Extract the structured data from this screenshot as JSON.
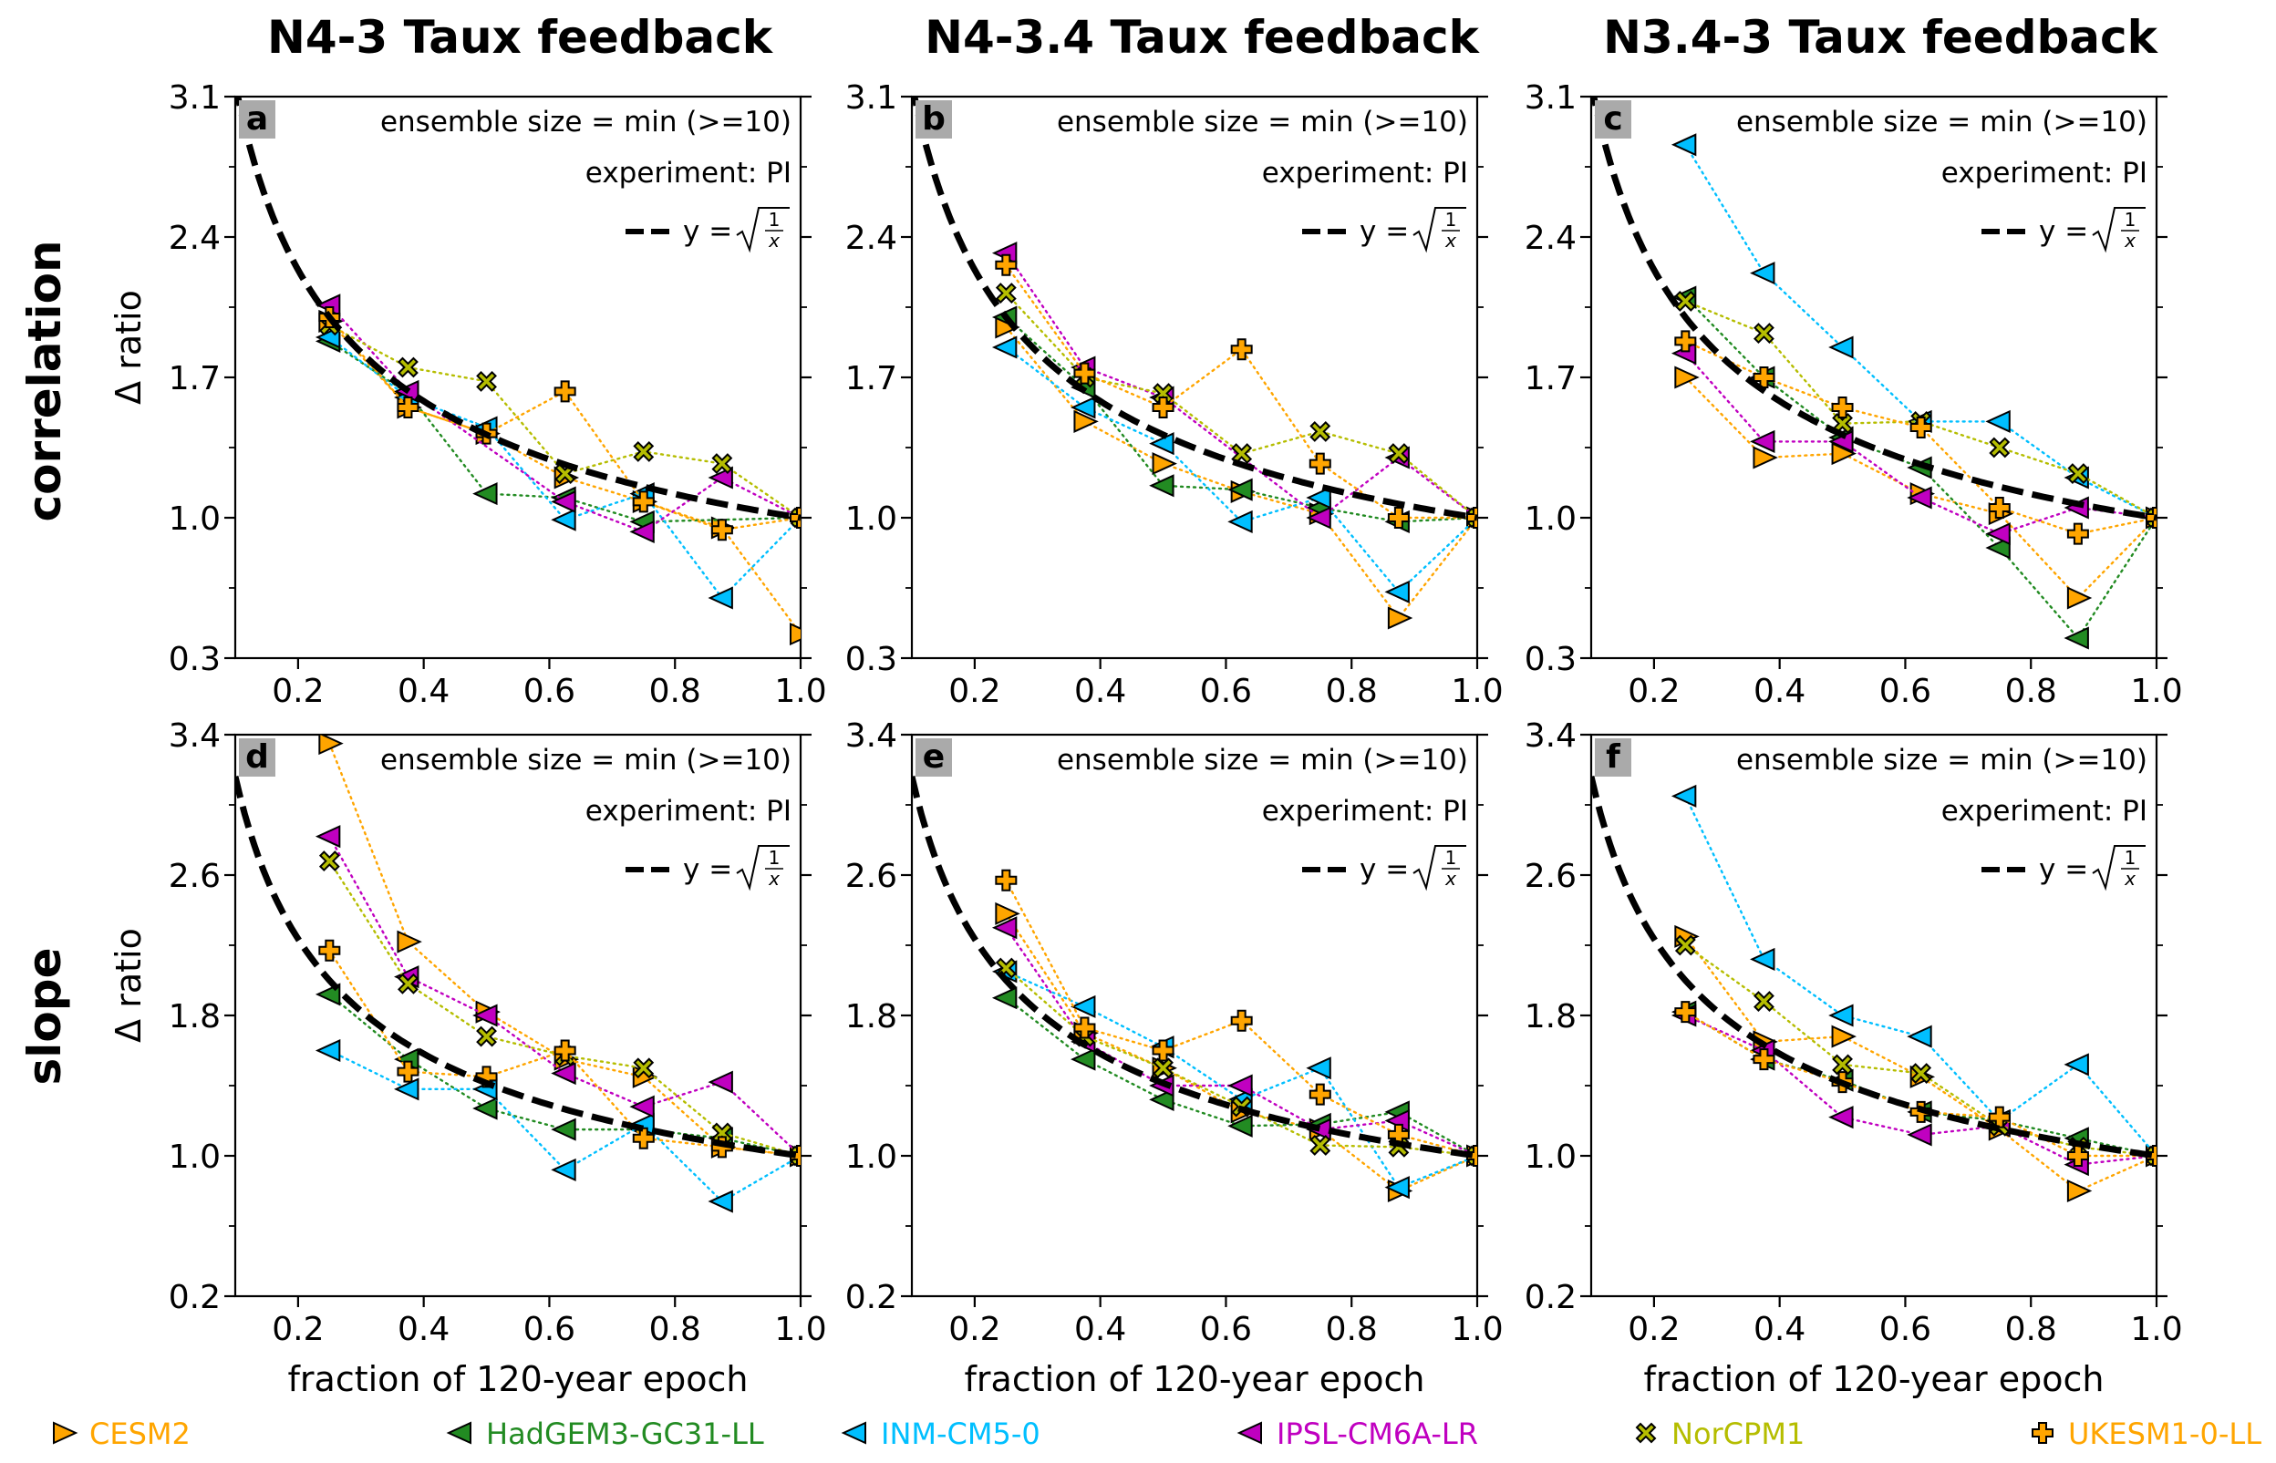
{
  "colors": {
    "CESM2": "#ffa500",
    "HadGEM3-GC31-LL": "#228b22",
    "INM-CM5-0": "#00bfff",
    "IPSL-CM6A-LR": "#c000c0",
    "NorCPM1": "#b5bd00",
    "UKESM1-0-LL": "#ffa500",
    "reference": "#000000",
    "panel_label_bg": "#aaaaaa"
  },
  "column_titles": [
    "N4-3 Taux feedback",
    "N4-3.4 Taux feedback",
    "N3.4-3 Taux feedback"
  ],
  "row_titles": [
    "correlation",
    "slope"
  ],
  "ylabel": "Δ ratio",
  "xlabel": "fraction of 120-year epoch",
  "annotation_ensemble": "ensemble size = min (>=10)",
  "annotation_experiment": "experiment: PI",
  "reference_legend": "y = √(1/x)",
  "reference_legend_prefix": "y = ",
  "reference_frac_num": "1",
  "reference_frac_den": "x",
  "panel_labels": [
    "a",
    "b",
    "c",
    "d",
    "e",
    "f"
  ],
  "legend": [
    {
      "name": "CESM2",
      "marker": "tri-right",
      "color": "#ffa500"
    },
    {
      "name": "HadGEM3-GC31-LL",
      "marker": "tri-left",
      "color": "#228b22"
    },
    {
      "name": "INM-CM5-0",
      "marker": "tri-left",
      "color": "#00bfff"
    },
    {
      "name": "IPSL-CM6A-LR",
      "marker": "tri-left",
      "color": "#c000c0"
    },
    {
      "name": "NorCPM1",
      "marker": "x",
      "color": "#b5bd00"
    },
    {
      "name": "UKESM1-0-LL",
      "marker": "plus",
      "color": "#ffa500"
    }
  ],
  "chart_data": [
    {
      "panel": "a",
      "type": "line",
      "row": "correlation",
      "column": "N4-3 Taux feedback",
      "xlim": [
        0.1,
        1.0
      ],
      "ylim": [
        0.3,
        3.1
      ],
      "xticks": [
        "0.2",
        "0.4",
        "0.6",
        "0.8",
        "1.0"
      ],
      "yticks": [
        "0.3",
        "1.0",
        "1.7",
        "2.4",
        "3.1"
      ],
      "x": [
        0.25,
        0.375,
        0.5,
        0.625,
        0.75,
        0.875,
        1.0
      ],
      "series": [
        {
          "name": "CESM2",
          "values": [
            1.98,
            1.55,
            1.42,
            1.2,
            1.08,
            0.95,
            0.42
          ]
        },
        {
          "name": "HadGEM3-GC31-LL",
          "values": [
            1.88,
            1.62,
            1.12,
            1.1,
            0.98,
            null,
            1.0
          ]
        },
        {
          "name": "INM-CM5-0",
          "values": [
            1.9,
            1.6,
            1.45,
            0.99,
            1.12,
            0.6,
            1.0
          ]
        },
        {
          "name": "IPSL-CM6A-LR",
          "values": [
            2.06,
            1.63,
            null,
            1.08,
            0.93,
            1.2,
            1.0
          ]
        },
        {
          "name": "NorCPM1",
          "values": [
            1.96,
            1.75,
            1.68,
            1.22,
            1.33,
            1.27,
            1.0
          ]
        },
        {
          "name": "UKESM1-0-LL",
          "values": [
            2.0,
            1.55,
            1.42,
            1.63,
            1.08,
            0.94,
            1.0
          ]
        }
      ]
    },
    {
      "panel": "b",
      "type": "line",
      "row": "correlation",
      "column": "N4-3.4 Taux feedback",
      "xlim": [
        0.1,
        1.0
      ],
      "ylim": [
        0.3,
        3.1
      ],
      "xticks": [
        "0.2",
        "0.4",
        "0.6",
        "0.8",
        "1.0"
      ],
      "yticks": [
        "0.3",
        "1.0",
        "1.7",
        "2.4",
        "3.1"
      ],
      "x": [
        0.25,
        0.375,
        0.5,
        0.625,
        0.75,
        0.875,
        1.0
      ],
      "series": [
        {
          "name": "CESM2",
          "values": [
            1.95,
            1.48,
            1.27,
            1.13,
            1.02,
            0.5,
            1.0
          ]
        },
        {
          "name": "HadGEM3-GC31-LL",
          "values": [
            2.0,
            1.65,
            1.16,
            1.14,
            1.05,
            0.98,
            1.0
          ]
        },
        {
          "name": "INM-CM5-0",
          "values": [
            1.85,
            1.55,
            1.37,
            0.98,
            1.1,
            0.63,
            1.0
          ]
        },
        {
          "name": "IPSL-CM6A-LR",
          "values": [
            2.32,
            1.75,
            1.6,
            null,
            1.0,
            1.3,
            1.0
          ]
        },
        {
          "name": "NorCPM1",
          "values": [
            2.12,
            1.7,
            1.62,
            1.32,
            1.43,
            1.32,
            1.0
          ]
        },
        {
          "name": "UKESM1-0-LL",
          "values": [
            2.26,
            1.72,
            1.55,
            1.84,
            1.27,
            1.0,
            1.0
          ]
        }
      ]
    },
    {
      "panel": "c",
      "type": "line",
      "row": "correlation",
      "column": "N3.4-3 Taux feedback",
      "xlim": [
        0.1,
        1.0
      ],
      "ylim": [
        0.3,
        3.1
      ],
      "xticks": [
        "0.2",
        "0.4",
        "0.6",
        "0.8",
        "1.0"
      ],
      "yticks": [
        "0.3",
        "1.0",
        "1.7",
        "2.4",
        "3.1"
      ],
      "x": [
        0.25,
        0.375,
        0.5,
        0.625,
        0.75,
        0.875,
        1.0
      ],
      "series": [
        {
          "name": "CESM2",
          "values": [
            1.7,
            1.3,
            1.32,
            1.12,
            1.02,
            0.6,
            1.0
          ]
        },
        {
          "name": "HadGEM3-GC31-LL",
          "values": [
            2.1,
            1.7,
            1.4,
            1.25,
            0.85,
            0.4,
            1.0
          ]
        },
        {
          "name": "INM-CM5-0",
          "values": [
            2.86,
            2.22,
            1.85,
            1.48,
            1.48,
            1.2,
            1.0
          ]
        },
        {
          "name": "IPSL-CM6A-LR",
          "values": [
            1.82,
            1.38,
            1.38,
            1.1,
            0.92,
            1.05,
            1.0
          ]
        },
        {
          "name": "NorCPM1",
          "values": [
            2.08,
            1.92,
            1.47,
            1.48,
            1.35,
            1.22,
            1.0
          ]
        },
        {
          "name": "UKESM1-0-LL",
          "values": [
            1.88,
            1.7,
            1.55,
            1.45,
            1.05,
            0.92,
            1.0
          ]
        }
      ]
    },
    {
      "panel": "d",
      "type": "line",
      "row": "slope",
      "column": "N4-3 Taux feedback",
      "xlim": [
        0.1,
        1.0
      ],
      "ylim": [
        0.2,
        3.4
      ],
      "xticks": [
        "0.2",
        "0.4",
        "0.6",
        "0.8",
        "1.0"
      ],
      "yticks": [
        "0.2",
        "1.0",
        "1.8",
        "2.6",
        "3.4"
      ],
      "x": [
        0.25,
        0.375,
        0.5,
        0.625,
        0.75,
        0.875,
        1.0
      ],
      "series": [
        {
          "name": "CESM2",
          "values": [
            3.35,
            2.22,
            1.82,
            1.55,
            1.45,
            1.05,
            1.0
          ]
        },
        {
          "name": "HadGEM3-GC31-LL",
          "values": [
            1.92,
            1.55,
            1.27,
            1.15,
            1.15,
            1.1,
            1.0
          ]
        },
        {
          "name": "INM-CM5-0",
          "values": [
            1.6,
            1.38,
            1.38,
            0.92,
            1.18,
            0.74,
            1.0
          ]
        },
        {
          "name": "IPSL-CM6A-LR",
          "values": [
            2.82,
            2.02,
            1.8,
            1.47,
            1.28,
            1.42,
            1.0
          ]
        },
        {
          "name": "NorCPM1",
          "values": [
            2.68,
            1.98,
            1.68,
            1.57,
            1.5,
            1.13,
            1.0
          ]
        },
        {
          "name": "UKESM1-0-LL",
          "values": [
            2.17,
            1.48,
            1.45,
            1.6,
            1.1,
            1.05,
            1.0
          ]
        }
      ]
    },
    {
      "panel": "e",
      "type": "line",
      "row": "slope",
      "column": "N4-3.4 Taux feedback",
      "xlim": [
        0.1,
        1.0
      ],
      "ylim": [
        0.2,
        3.4
      ],
      "xticks": [
        "0.2",
        "0.4",
        "0.6",
        "0.8",
        "1.0"
      ],
      "yticks": [
        "0.2",
        "1.0",
        "1.8",
        "2.6",
        "3.4"
      ],
      "x": [
        0.25,
        0.375,
        0.5,
        0.625,
        0.75,
        0.875,
        1.0
      ],
      "series": [
        {
          "name": "CESM2",
          "values": [
            2.38,
            1.7,
            1.5,
            1.25,
            1.15,
            0.8,
            1.0
          ]
        },
        {
          "name": "HadGEM3-GC31-LL",
          "values": [
            1.9,
            1.55,
            1.32,
            1.17,
            1.18,
            1.25,
            1.0
          ]
        },
        {
          "name": "INM-CM5-0",
          "values": [
            2.05,
            1.85,
            1.62,
            1.32,
            1.5,
            0.82,
            1.0
          ]
        },
        {
          "name": "IPSL-CM6A-LR",
          "values": [
            2.3,
            1.65,
            1.4,
            1.4,
            1.15,
            1.2,
            1.0
          ]
        },
        {
          "name": "NorCPM1",
          "values": [
            2.07,
            1.68,
            1.5,
            1.28,
            1.06,
            1.05,
            1.0
          ]
        },
        {
          "name": "UKESM1-0-LL",
          "values": [
            2.57,
            1.73,
            1.6,
            1.77,
            1.35,
            1.12,
            1.0
          ]
        }
      ]
    },
    {
      "panel": "f",
      "type": "line",
      "row": "slope",
      "column": "N3.4-3 Taux feedback",
      "xlim": [
        0.1,
        1.0
      ],
      "ylim": [
        0.2,
        3.4
      ],
      "xticks": [
        "0.2",
        "0.4",
        "0.6",
        "0.8",
        "1.0"
      ],
      "yticks": [
        "0.2",
        "1.0",
        "1.8",
        "2.6",
        "3.4"
      ],
      "x": [
        0.25,
        0.375,
        0.5,
        0.625,
        0.75,
        0.875,
        1.0
      ],
      "series": [
        {
          "name": "CESM2",
          "values": [
            2.25,
            1.65,
            1.68,
            1.45,
            1.15,
            0.8,
            1.0
          ]
        },
        {
          "name": "HadGEM3-GC31-LL",
          "values": [
            1.82,
            1.55,
            1.43,
            1.25,
            1.2,
            1.1,
            1.0
          ]
        },
        {
          "name": "INM-CM5-0",
          "values": [
            3.05,
            2.12,
            1.8,
            1.68,
            1.2,
            1.52,
            1.0
          ]
        },
        {
          "name": "IPSL-CM6A-LR",
          "values": [
            1.8,
            1.6,
            1.22,
            1.12,
            1.17,
            0.95,
            1.0
          ]
        },
        {
          "name": "NorCPM1",
          "values": [
            2.2,
            1.88,
            1.52,
            1.47,
            1.17,
            1.05,
            1.0
          ]
        },
        {
          "name": "UKESM1-0-LL",
          "values": [
            1.82,
            1.55,
            1.42,
            1.25,
            1.22,
            1.0,
            1.0
          ]
        }
      ]
    }
  ]
}
